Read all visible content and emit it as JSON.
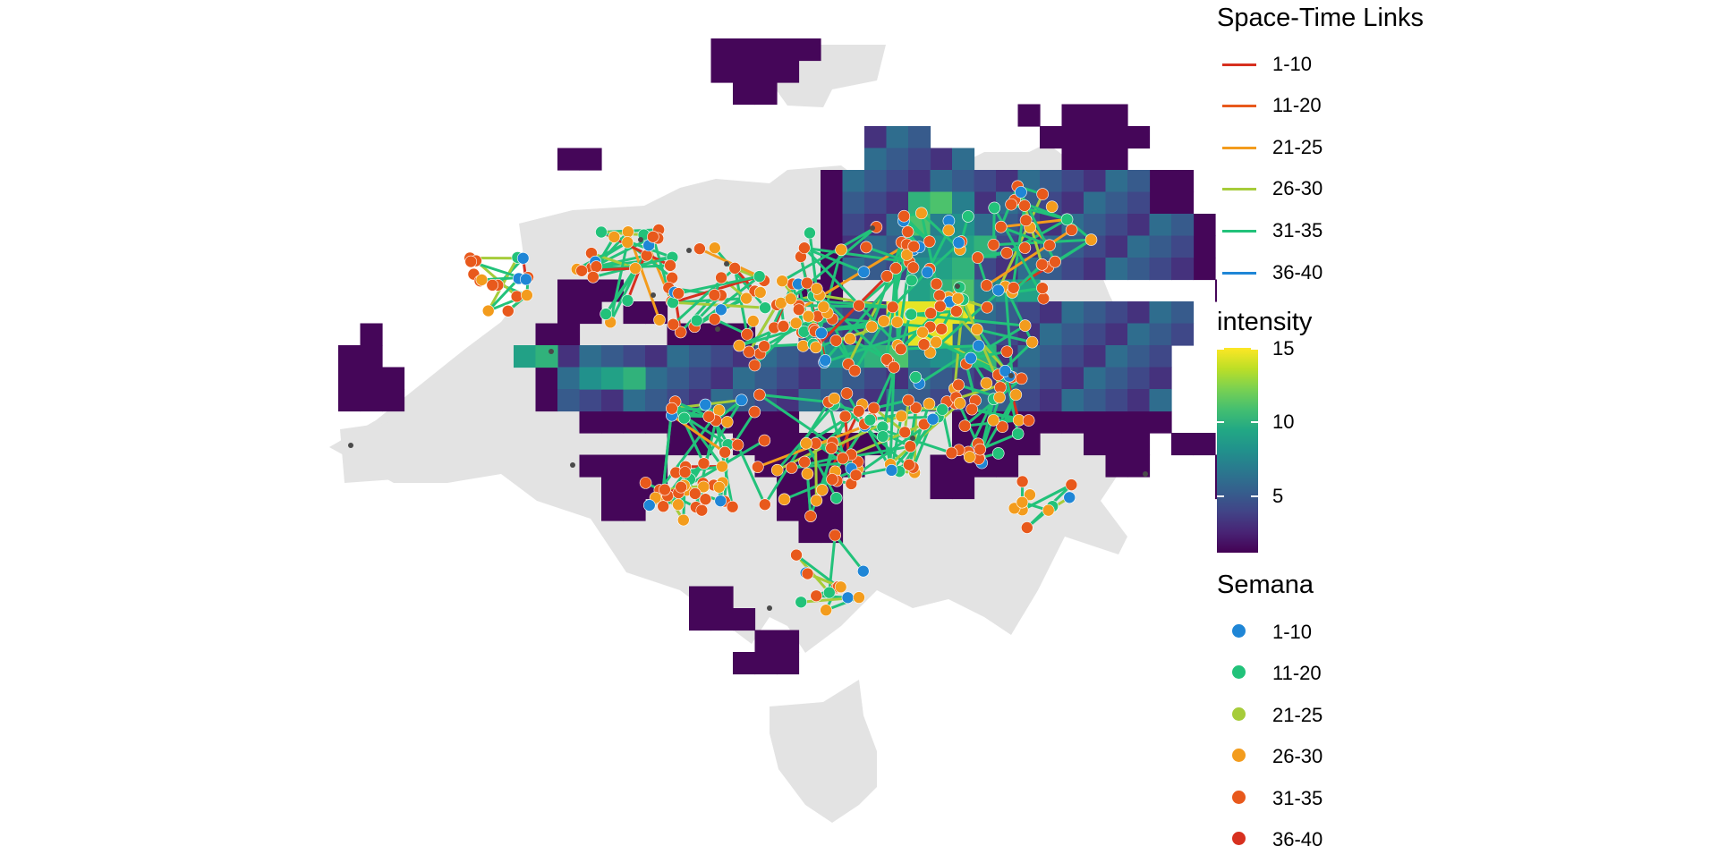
{
  "legend": {
    "links": {
      "title": "Space-Time Links",
      "entries": [
        {
          "label": "1-10",
          "color": "#d7301f"
        },
        {
          "label": "11-20",
          "color": "#e8591c"
        },
        {
          "label": "21-25",
          "color": "#f39c1d"
        },
        {
          "label": "26-30",
          "color": "#a6cc3a"
        },
        {
          "label": "31-35",
          "color": "#22c27a"
        },
        {
          "label": "36-40",
          "color": "#1f86d6"
        }
      ]
    },
    "intensity": {
      "title": "intensity",
      "min": 1,
      "max": 15,
      "ticks": [
        {
          "value": 15,
          "label": "15"
        },
        {
          "value": 10,
          "label": "10"
        },
        {
          "value": 5,
          "label": "5"
        }
      ],
      "colormap": "viridis"
    },
    "semana": {
      "title": "Semana",
      "entries": [
        {
          "label": "1-10",
          "color": "#1f86d6"
        },
        {
          "label": "11-20",
          "color": "#22c27a"
        },
        {
          "label": "21-25",
          "color": "#a6cc3a"
        },
        {
          "label": "26-30",
          "color": "#f39c1d"
        },
        {
          "label": "31-35",
          "color": "#e8591c"
        },
        {
          "label": "36-40",
          "color": "#d7301f"
        }
      ]
    }
  },
  "colors": {
    "region_fill": "#e3e3e3",
    "background": "#ffffff",
    "unlinked_point": "#4a4a4a",
    "point_ring": "#e8591c",
    "link_main": "#22c27a"
  }
}
